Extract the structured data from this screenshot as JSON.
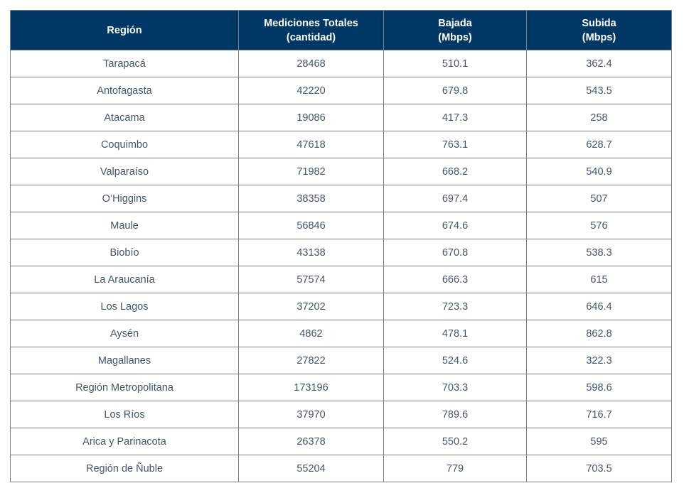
{
  "chart_data": {
    "type": "table",
    "title": "",
    "columns": [
      {
        "line1": "Región",
        "line2": ""
      },
      {
        "line1": "Mediciones Totales",
        "line2": "(cantidad)"
      },
      {
        "line1": "Bajada",
        "line2": "(Mbps)"
      },
      {
        "line1": "Subida",
        "line2": "(Mbps)"
      }
    ],
    "rows": [
      {
        "region": "Tarapacá",
        "mediciones": "28468",
        "bajada": "510.1",
        "subida": "362.4"
      },
      {
        "region": "Antofagasta",
        "mediciones": "42220",
        "bajada": "679.8",
        "subida": "543.5"
      },
      {
        "region": "Atacama",
        "mediciones": "19086",
        "bajada": "417.3",
        "subida": "258"
      },
      {
        "region": "Coquimbo",
        "mediciones": "47618",
        "bajada": "763.1",
        "subida": "628.7"
      },
      {
        "region": "Valparaíso",
        "mediciones": "71982",
        "bajada": "668.2",
        "subida": "540.9"
      },
      {
        "region": "O’Higgins",
        "mediciones": "38358",
        "bajada": "697.4",
        "subida": "507"
      },
      {
        "region": "Maule",
        "mediciones": "56846",
        "bajada": "674.6",
        "subida": "576"
      },
      {
        "region": "Biobío",
        "mediciones": "43138",
        "bajada": "670.8",
        "subida": "538.3"
      },
      {
        "region": "La Araucanía",
        "mediciones": "57574",
        "bajada": "666.3",
        "subida": "615"
      },
      {
        "region": "Los Lagos",
        "mediciones": "37202",
        "bajada": "723.3",
        "subida": "646.4"
      },
      {
        "region": "Aysén",
        "mediciones": "4862",
        "bajada": "478.1",
        "subida": "862.8"
      },
      {
        "region": "Magallanes",
        "mediciones": "27822",
        "bajada": "524.6",
        "subida": "322.3"
      },
      {
        "region": "Región Metropolitana",
        "mediciones": "173196",
        "bajada": "703.3",
        "subida": "598.6"
      },
      {
        "region": "Los Ríos",
        "mediciones": "37970",
        "bajada": "789.6",
        "subida": "716.7"
      },
      {
        "region": "Arica y Parinacota",
        "mediciones": "26378",
        "bajada": "550.2",
        "subida": "595"
      },
      {
        "region": "Región de Ñuble",
        "mediciones": "55204",
        "bajada": "779",
        "subida": "703.5"
      }
    ]
  },
  "colors": {
    "header_bg": "#003865",
    "header_text": "#ffffff",
    "cell_text": "#44546a",
    "border": "#7f7f7f"
  }
}
